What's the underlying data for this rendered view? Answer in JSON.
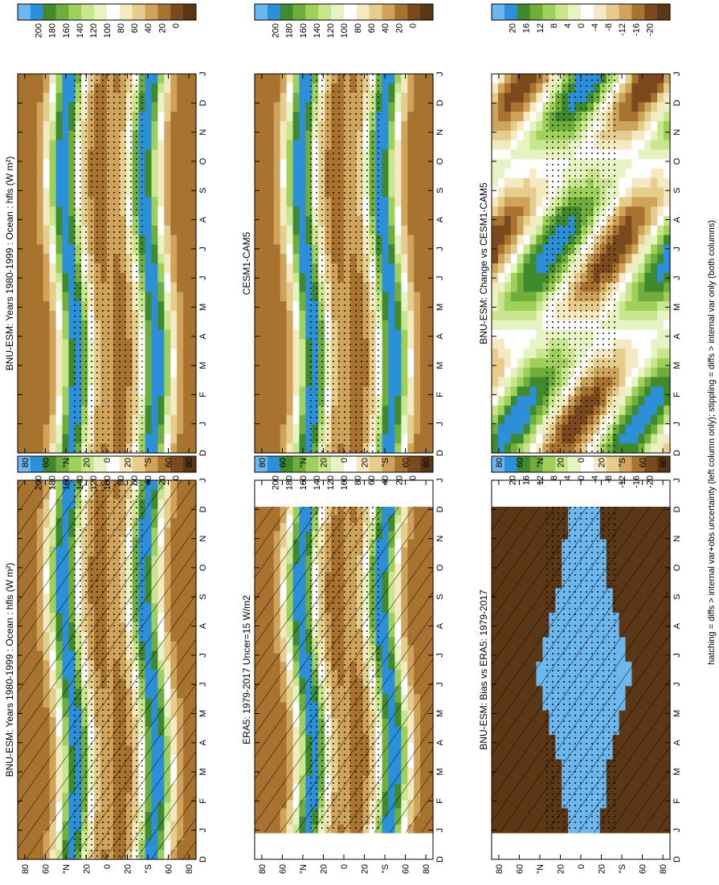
{
  "figure": {
    "footnote": "hatching = diffs > internal var+obs uncertainty (left column only); stippling = diffs > internal var only (both columns)"
  },
  "colors": {
    "brown_dark": "#5b3716",
    "brown": "#7a4a1c",
    "brown_mid": "#a8732f",
    "tan": "#cfa45a",
    "sand": "#e6cd8e",
    "cream": "#f4e9c0",
    "white": "#ffffff",
    "pale_green": "#e6f3c3",
    "light_green": "#c9e68e",
    "lime": "#9fd05a",
    "green": "#6fae3a",
    "dark_green": "#3f8a2c",
    "blue": "#2b8fd9",
    "light_blue": "#6cb8ee"
  },
  "chart_data": [
    {
      "id": "p1",
      "type": "heatmap",
      "title": "BNU-ESM: Years 1980-1999 : Ocean : hfls (W m²)",
      "months": [
        "D",
        "J",
        "F",
        "M",
        "A",
        "M",
        "J",
        "J",
        "A",
        "S",
        "O",
        "N",
        "D",
        "J"
      ],
      "lat_ticks": [
        "80",
        "60",
        "°N",
        "20",
        "0",
        "20",
        "°S",
        "60",
        "80"
      ],
      "colorbar": [
        "200",
        "180",
        "160",
        "140",
        "120",
        "100",
        "80",
        "60",
        "40",
        "20",
        "0"
      ],
      "data_extent": "full",
      "hatching": true,
      "stippling": true
    },
    {
      "id": "p2",
      "type": "heatmap",
      "title": "BNU-ESM: Years 1980-1999 : Ocean : hfls (W m²)",
      "months": [
        "D",
        "J",
        "F",
        "M",
        "A",
        "M",
        "J",
        "J",
        "A",
        "S",
        "O",
        "N",
        "D",
        "J"
      ],
      "lat_ticks": [
        "80",
        "60",
        "°N",
        "20",
        "0",
        "20",
        "°S",
        "60",
        "80"
      ],
      "colorbar": [
        "200",
        "180",
        "160",
        "140",
        "120",
        "100",
        "80",
        "60",
        "40",
        "20",
        "0"
      ],
      "data_extent": "full",
      "hatching": false,
      "stippling": true
    },
    {
      "id": "p3",
      "type": "heatmap",
      "title": "ERA5: 1979-2017 Uncer=15 W/m2",
      "months": [
        "D",
        "J",
        "F",
        "M",
        "A",
        "M",
        "J",
        "J",
        "A",
        "S",
        "O",
        "N",
        "D",
        "J"
      ],
      "lat_ticks": [
        "80",
        "60",
        "°N",
        "20",
        "0",
        "20",
        "°S",
        "60",
        "80"
      ],
      "colorbar": [
        "200",
        "180",
        "160",
        "140",
        "120",
        "100",
        "80",
        "60",
        "40",
        "20",
        "0"
      ],
      "data_extent": "partial",
      "hatching": true,
      "stippling": true
    },
    {
      "id": "p4",
      "type": "heatmap",
      "title": "CESM1-CAM5",
      "months": [
        "D",
        "J",
        "F",
        "M",
        "A",
        "M",
        "J",
        "J",
        "A",
        "S",
        "O",
        "N",
        "D",
        "J"
      ],
      "lat_ticks": [
        "80",
        "60",
        "°N",
        "20",
        "0",
        "20",
        "°S",
        "60",
        "80"
      ],
      "colorbar": [
        "200",
        "180",
        "160",
        "140",
        "120",
        "100",
        "80",
        "60",
        "40",
        "20",
        "0"
      ],
      "data_extent": "full",
      "hatching": false,
      "stippling": true
    },
    {
      "id": "p5",
      "type": "heatmap",
      "title": "BNU-ESM: Bias vs ERA5: 1979-2017",
      "months": [
        "D",
        "J",
        "F",
        "M",
        "A",
        "M",
        "J",
        "J",
        "A",
        "S",
        "O",
        "N",
        "D",
        "J"
      ],
      "lat_ticks": [
        "80",
        "60",
        "°N",
        "20",
        "0",
        "20",
        "°S",
        "60",
        "80"
      ],
      "colorbar": [
        "20",
        "16",
        "12",
        "8",
        "4",
        "0",
        "-4",
        "-8",
        "-12",
        "-16",
        "-20"
      ],
      "data_extent": "partial",
      "hatching": true,
      "stippling": true
    },
    {
      "id": "p6",
      "type": "heatmap",
      "title": "BNU-ESM: Change vs CESM1-CAM5",
      "months": [
        "D",
        "J",
        "F",
        "M",
        "A",
        "M",
        "J",
        "J",
        "A",
        "S",
        "O",
        "N",
        "D",
        "J"
      ],
      "lat_ticks": [
        "80",
        "60",
        "°N",
        "20",
        "0",
        "20",
        "°S",
        "60",
        "80"
      ],
      "colorbar": [
        "20",
        "16",
        "12",
        "8",
        "4",
        "0",
        "-4",
        "-8",
        "-12",
        "-16",
        "-20"
      ],
      "data_extent": "full",
      "hatching": false,
      "stippling": true
    }
  ]
}
